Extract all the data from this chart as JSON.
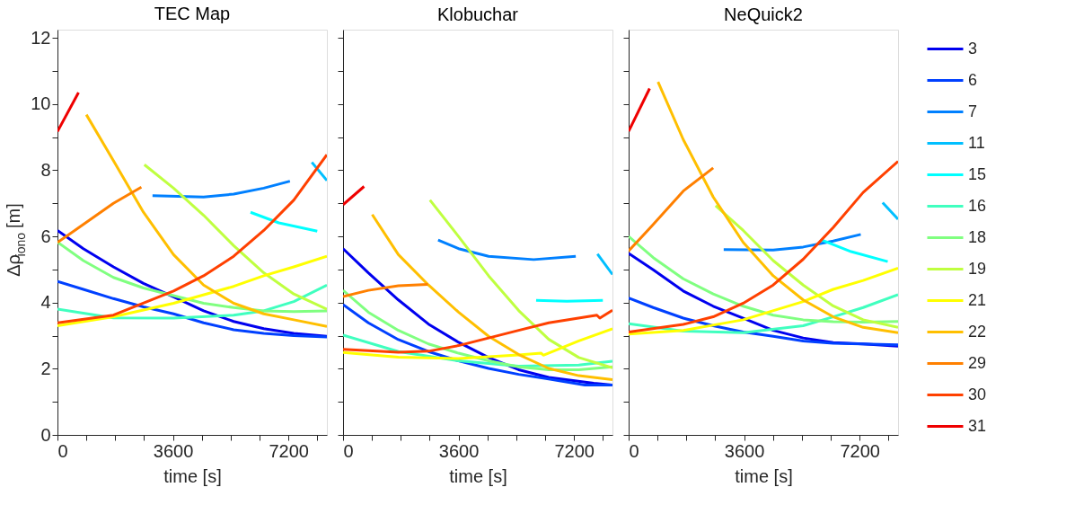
{
  "chart_data": [
    {
      "type": "line",
      "title": "TEC Map",
      "xlabel": "time [s]",
      "ylabel": "Δρ$_{iono}$ [m]",
      "xlim": [
        0,
        8400
      ],
      "ylim": [
        0,
        12.25
      ],
      "xticks": [
        0,
        {
          "value": 900,
          "label": null
        },
        {
          "value": 1800,
          "label": null
        },
        {
          "value": 2700,
          "label": null
        },
        3600,
        {
          "value": 4500,
          "label": null
        },
        {
          "value": 5400,
          "label": null
        },
        {
          "value": 6300,
          "label": null
        },
        7200,
        {
          "value": 8100,
          "label": null
        }
      ],
      "yticks": [
        0,
        {
          "value": 1,
          "label": null
        },
        2,
        {
          "value": 3,
          "label": null
        },
        4,
        {
          "value": 5,
          "label": null
        },
        6,
        {
          "value": 7,
          "label": null
        },
        8,
        {
          "value": 9,
          "label": null
        },
        10,
        {
          "value": 11,
          "label": null
        },
        12
      ],
      "grid": false,
      "legend": "right",
      "line_style": "solid",
      "marker": "none",
      "series": [
        {
          "name": "3",
          "color": "#0000ef",
          "x": [
            0,
            806,
            1744,
            2681,
            3619,
            4556,
            5494,
            6431,
            7369,
            8400
          ],
          "values": [
            6.18,
            5.63,
            5.08,
            4.58,
            4.17,
            3.75,
            3.43,
            3.21,
            3.07,
            2.98
          ]
        },
        {
          "name": "6",
          "color": "#0040ff",
          "x": [
            0,
            806,
            1744,
            2681,
            3619,
            4556,
            5494,
            6431,
            7369,
            8400
          ],
          "values": [
            4.64,
            4.4,
            4.12,
            3.87,
            3.66,
            3.39,
            3.18,
            3.07,
            3.0,
            2.96
          ]
        },
        {
          "name": "7",
          "color": "#0080ff",
          "x": [
            2963,
            4556,
            5494,
            6431,
            7247
          ],
          "values": [
            7.23,
            7.19,
            7.28,
            7.46,
            7.67
          ]
        },
        {
          "name": "11",
          "color": "#00bfff",
          "x": [
            7931,
            8400
          ],
          "values": [
            8.24,
            7.69
          ]
        },
        {
          "name": "15",
          "color": "#00ffff",
          "x": [
            6019,
            6900,
            8100
          ],
          "values": [
            6.73,
            6.41,
            6.16
          ]
        },
        {
          "name": "16",
          "color": "#40ffbf",
          "x": [
            0,
            1744,
            3619,
            5494,
            6431,
            7369,
            8400
          ],
          "values": [
            3.8,
            3.54,
            3.53,
            3.62,
            3.75,
            4.03,
            4.53
          ]
        },
        {
          "name": "18",
          "color": "#80ff80",
          "x": [
            0,
            806,
            1744,
            2681,
            3619,
            4556,
            5494,
            6431,
            7369,
            8400
          ],
          "values": [
            5.83,
            5.27,
            4.76,
            4.44,
            4.21,
            3.98,
            3.85,
            3.75,
            3.73,
            3.75
          ]
        },
        {
          "name": "19",
          "color": "#bfff40",
          "x": [
            2709,
            3619,
            4556,
            5494,
            6431,
            7369,
            8400
          ],
          "values": [
            8.17,
            7.46,
            6.64,
            5.72,
            4.9,
            4.26,
            3.8
          ]
        },
        {
          "name": "21",
          "color": "#ffff00",
          "x": [
            0,
            1744,
            3619,
            5494,
            6431,
            7369,
            8400
          ],
          "values": [
            3.3,
            3.57,
            3.98,
            4.49,
            4.81,
            5.08,
            5.4
          ]
        },
        {
          "name": "22",
          "color": "#ffbf00",
          "x": [
            900,
            1744,
            2681,
            3619,
            4556,
            5494,
            6431,
            7369,
            8400
          ],
          "values": [
            9.68,
            8.29,
            6.73,
            5.45,
            4.53,
            3.98,
            3.66,
            3.48,
            3.28
          ]
        },
        {
          "name": "29",
          "color": "#ff8000",
          "x": [
            0,
            806,
            1744,
            2616
          ],
          "values": [
            5.82,
            6.36,
            7.0,
            7.49
          ]
        },
        {
          "name": "30",
          "color": "#ff4000",
          "x": [
            0,
            1744,
            3619,
            4556,
            5494,
            6431,
            7369,
            8400
          ],
          "values": [
            3.39,
            3.62,
            4.35,
            4.81,
            5.4,
            6.18,
            7.1,
            8.47
          ]
        },
        {
          "name": "31",
          "color": "#ef0000",
          "x": [
            0,
            656
          ],
          "values": [
            9.17,
            10.35
          ]
        }
      ]
    },
    {
      "type": "line",
      "title": "Klobuchar",
      "xlabel": "time [s]",
      "xlim": [
        0,
        8400
      ],
      "ylim": [
        0,
        12.25
      ],
      "tick_labels": "x",
      "xticks": [
        0,
        {
          "value": 900,
          "label": null
        },
        {
          "value": 1800,
          "label": null
        },
        {
          "value": 2700,
          "label": null
        },
        3600,
        {
          "value": 4500,
          "label": null
        },
        {
          "value": 5400,
          "label": null
        },
        {
          "value": 6300,
          "label": null
        },
        7200,
        {
          "value": 8100,
          "label": null
        }
      ],
      "yticks": [
        0,
        {
          "value": 1,
          "label": null
        },
        2,
        {
          "value": 3,
          "label": null
        },
        4,
        {
          "value": 5,
          "label": null
        },
        6,
        {
          "value": 7,
          "label": null
        },
        8,
        {
          "value": 9,
          "label": null
        },
        10,
        {
          "value": 11,
          "label": null
        },
        12
      ],
      "grid": false,
      "legend": "right",
      "line_style": "solid",
      "marker": "none",
      "series": [
        {
          "name": "3",
          "color": "#0000ef",
          "x": [
            0,
            788,
            1725,
            2663,
            3600,
            4538,
            5475,
            6413,
            7819,
            8400
          ],
          "values": [
            5.63,
            4.9,
            4.08,
            3.35,
            2.8,
            2.34,
            1.97,
            1.74,
            1.56,
            1.51
          ]
        },
        {
          "name": "6",
          "color": "#0040ff",
          "x": [
            0,
            788,
            1725,
            2663,
            3600,
            4538,
            5475,
            6413,
            7538,
            8400
          ],
          "values": [
            3.94,
            3.39,
            2.88,
            2.52,
            2.24,
            2.01,
            1.83,
            1.69,
            1.51,
            1.51
          ]
        },
        {
          "name": "7",
          "color": "#0080ff",
          "x": [
            2963,
            3600,
            4538,
            5944,
            7256
          ],
          "values": [
            5.89,
            5.63,
            5.4,
            5.3,
            5.4
          ]
        },
        {
          "name": "11",
          "color": "#00bfff",
          "x": [
            7931,
            8400
          ],
          "values": [
            5.47,
            4.85
          ]
        },
        {
          "name": "15",
          "color": "#00ffff",
          "x": [
            6019,
            6975,
            8100
          ],
          "values": [
            4.07,
            4.04,
            4.07
          ]
        },
        {
          "name": "16",
          "color": "#40ffbf",
          "x": [
            0,
            1725,
            3600,
            5475,
            7350,
            8400
          ],
          "values": [
            3.02,
            2.52,
            2.24,
            2.08,
            2.11,
            2.23
          ]
        },
        {
          "name": "18",
          "color": "#80ff80",
          "x": [
            0,
            788,
            1725,
            2663,
            3600,
            4538,
            5475,
            6413,
            7350,
            8400
          ],
          "values": [
            4.37,
            3.71,
            3.16,
            2.75,
            2.47,
            2.24,
            2.06,
            1.97,
            1.97,
            2.06
          ]
        },
        {
          "name": "19",
          "color": "#bfff40",
          "x": [
            2709,
            3600,
            4538,
            5475,
            6413,
            7350,
            8400
          ],
          "values": [
            7.1,
            6.0,
            4.81,
            3.76,
            2.89,
            2.34,
            2.03
          ]
        },
        {
          "name": "21",
          "color": "#ffff00",
          "x": [
            0,
            1725,
            3600,
            5475,
            6178,
            6244,
            7350,
            8400
          ],
          "values": [
            2.49,
            2.35,
            2.31,
            2.42,
            2.47,
            2.41,
            2.84,
            3.21
          ]
        },
        {
          "name": "22",
          "color": "#ffbf00",
          "x": [
            909,
            1725,
            2663,
            3600,
            4538,
            5475,
            6413,
            7350,
            8400
          ],
          "values": [
            6.66,
            5.45,
            4.53,
            3.71,
            2.98,
            2.43,
            2.01,
            1.79,
            1.67
          ]
        },
        {
          "name": "29",
          "color": "#ff8000",
          "x": [
            0,
            788,
            1725,
            2644
          ],
          "values": [
            4.18,
            4.37,
            4.51,
            4.55
          ]
        },
        {
          "name": "30",
          "color": "#ff4000",
          "x": [
            0,
            1725,
            2663,
            3600,
            4538,
            5475,
            6413,
            7913,
            8006,
            8400
          ],
          "values": [
            2.59,
            2.5,
            2.53,
            2.7,
            2.93,
            3.16,
            3.39,
            3.62,
            3.53,
            3.77
          ]
        },
        {
          "name": "31",
          "color": "#ef0000",
          "x": [
            0,
            656
          ],
          "values": [
            6.96,
            7.51
          ]
        }
      ]
    },
    {
      "type": "line",
      "title": "NeQuick2",
      "xlabel": "time [s]",
      "xlim": [
        0,
        8400
      ],
      "ylim": [
        0,
        12.25
      ],
      "tick_labels": "x",
      "xticks": [
        0,
        {
          "value": 900,
          "label": null
        },
        {
          "value": 1800,
          "label": null
        },
        {
          "value": 2700,
          "label": null
        },
        3600,
        {
          "value": 4500,
          "label": null
        },
        {
          "value": 5400,
          "label": null
        },
        {
          "value": 6300,
          "label": null
        },
        7200,
        {
          "value": 8100,
          "label": null
        }
      ],
      "yticks": [
        0,
        {
          "value": 1,
          "label": null
        },
        2,
        {
          "value": 3,
          "label": null
        },
        4,
        {
          "value": 5,
          "label": null
        },
        6,
        {
          "value": 7,
          "label": null
        },
        8,
        {
          "value": 9,
          "label": null
        },
        10,
        {
          "value": 11,
          "label": null
        },
        12
      ],
      "grid": false,
      "legend": "right",
      "line_style": "solid",
      "marker": "none",
      "series": [
        {
          "name": "3",
          "color": "#0000ef",
          "x": [
            0,
            767,
            1702,
            2637,
            3572,
            4507,
            5442,
            6377,
            7312,
            8400
          ],
          "values": [
            5.49,
            4.99,
            4.35,
            3.89,
            3.53,
            3.16,
            2.93,
            2.79,
            2.75,
            2.68
          ]
        },
        {
          "name": "6",
          "color": "#0040ff",
          "x": [
            0,
            767,
            1702,
            2637,
            3572,
            4507,
            5442,
            6377,
            8400
          ],
          "values": [
            4.14,
            3.85,
            3.53,
            3.3,
            3.11,
            2.98,
            2.84,
            2.77,
            2.72
          ]
        },
        {
          "name": "7",
          "color": "#0080ff",
          "x": [
            2964,
            4507,
            5442,
            6377,
            7237
          ],
          "values": [
            5.6,
            5.59,
            5.68,
            5.86,
            6.06
          ]
        },
        {
          "name": "11",
          "color": "#00bfff",
          "x": [
            7919,
            8400
          ],
          "values": [
            7.02,
            6.52
          ]
        },
        {
          "name": "15",
          "color": "#00ffff",
          "x": [
            6021,
            6938,
            8078
          ],
          "values": [
            5.89,
            5.54,
            5.24
          ]
        },
        {
          "name": "16",
          "color": "#40ffbf",
          "x": [
            0,
            1702,
            3572,
            5442,
            6377,
            7312,
            8400
          ],
          "values": [
            3.36,
            3.14,
            3.09,
            3.3,
            3.57,
            3.85,
            4.24
          ]
        },
        {
          "name": "18",
          "color": "#80ff80",
          "x": [
            0,
            767,
            1702,
            2637,
            3572,
            4507,
            5442,
            6377,
            7312,
            8400
          ],
          "values": [
            6.0,
            5.36,
            4.72,
            4.26,
            3.89,
            3.62,
            3.48,
            3.42,
            3.41,
            3.43
          ]
        },
        {
          "name": "19",
          "color": "#bfff40",
          "x": [
            2712,
            3572,
            4507,
            5442,
            6377,
            7312,
            8400
          ],
          "values": [
            6.93,
            6.18,
            5.27,
            4.53,
            3.9,
            3.48,
            3.25
          ]
        },
        {
          "name": "21",
          "color": "#ffff00",
          "x": [
            0,
            1702,
            3572,
            5442,
            6377,
            7312,
            8400
          ],
          "values": [
            3.05,
            3.16,
            3.48,
            4.03,
            4.4,
            4.67,
            5.04
          ]
        },
        {
          "name": "22",
          "color": "#ffbf00",
          "x": [
            916,
            1702,
            2637,
            3572,
            4507,
            5442,
            6377,
            7312,
            8400
          ],
          "values": [
            10.67,
            8.93,
            7.19,
            5.82,
            4.81,
            4.08,
            3.57,
            3.25,
            3.09
          ]
        },
        {
          "name": "29",
          "color": "#ff8000",
          "x": [
            0,
            767,
            1702,
            2637
          ],
          "values": [
            5.56,
            6.36,
            7.37,
            8.07
          ]
        },
        {
          "name": "30",
          "color": "#ff4000",
          "x": [
            0,
            1702,
            2637,
            3572,
            4507,
            5442,
            6377,
            7312,
            8400
          ],
          "values": [
            3.11,
            3.34,
            3.57,
            3.98,
            4.53,
            5.31,
            6.27,
            7.33,
            8.27
          ]
        },
        {
          "name": "31",
          "color": "#ef0000",
          "x": [
            0,
            654
          ],
          "values": [
            9.18,
            10.47
          ]
        }
      ]
    }
  ]
}
